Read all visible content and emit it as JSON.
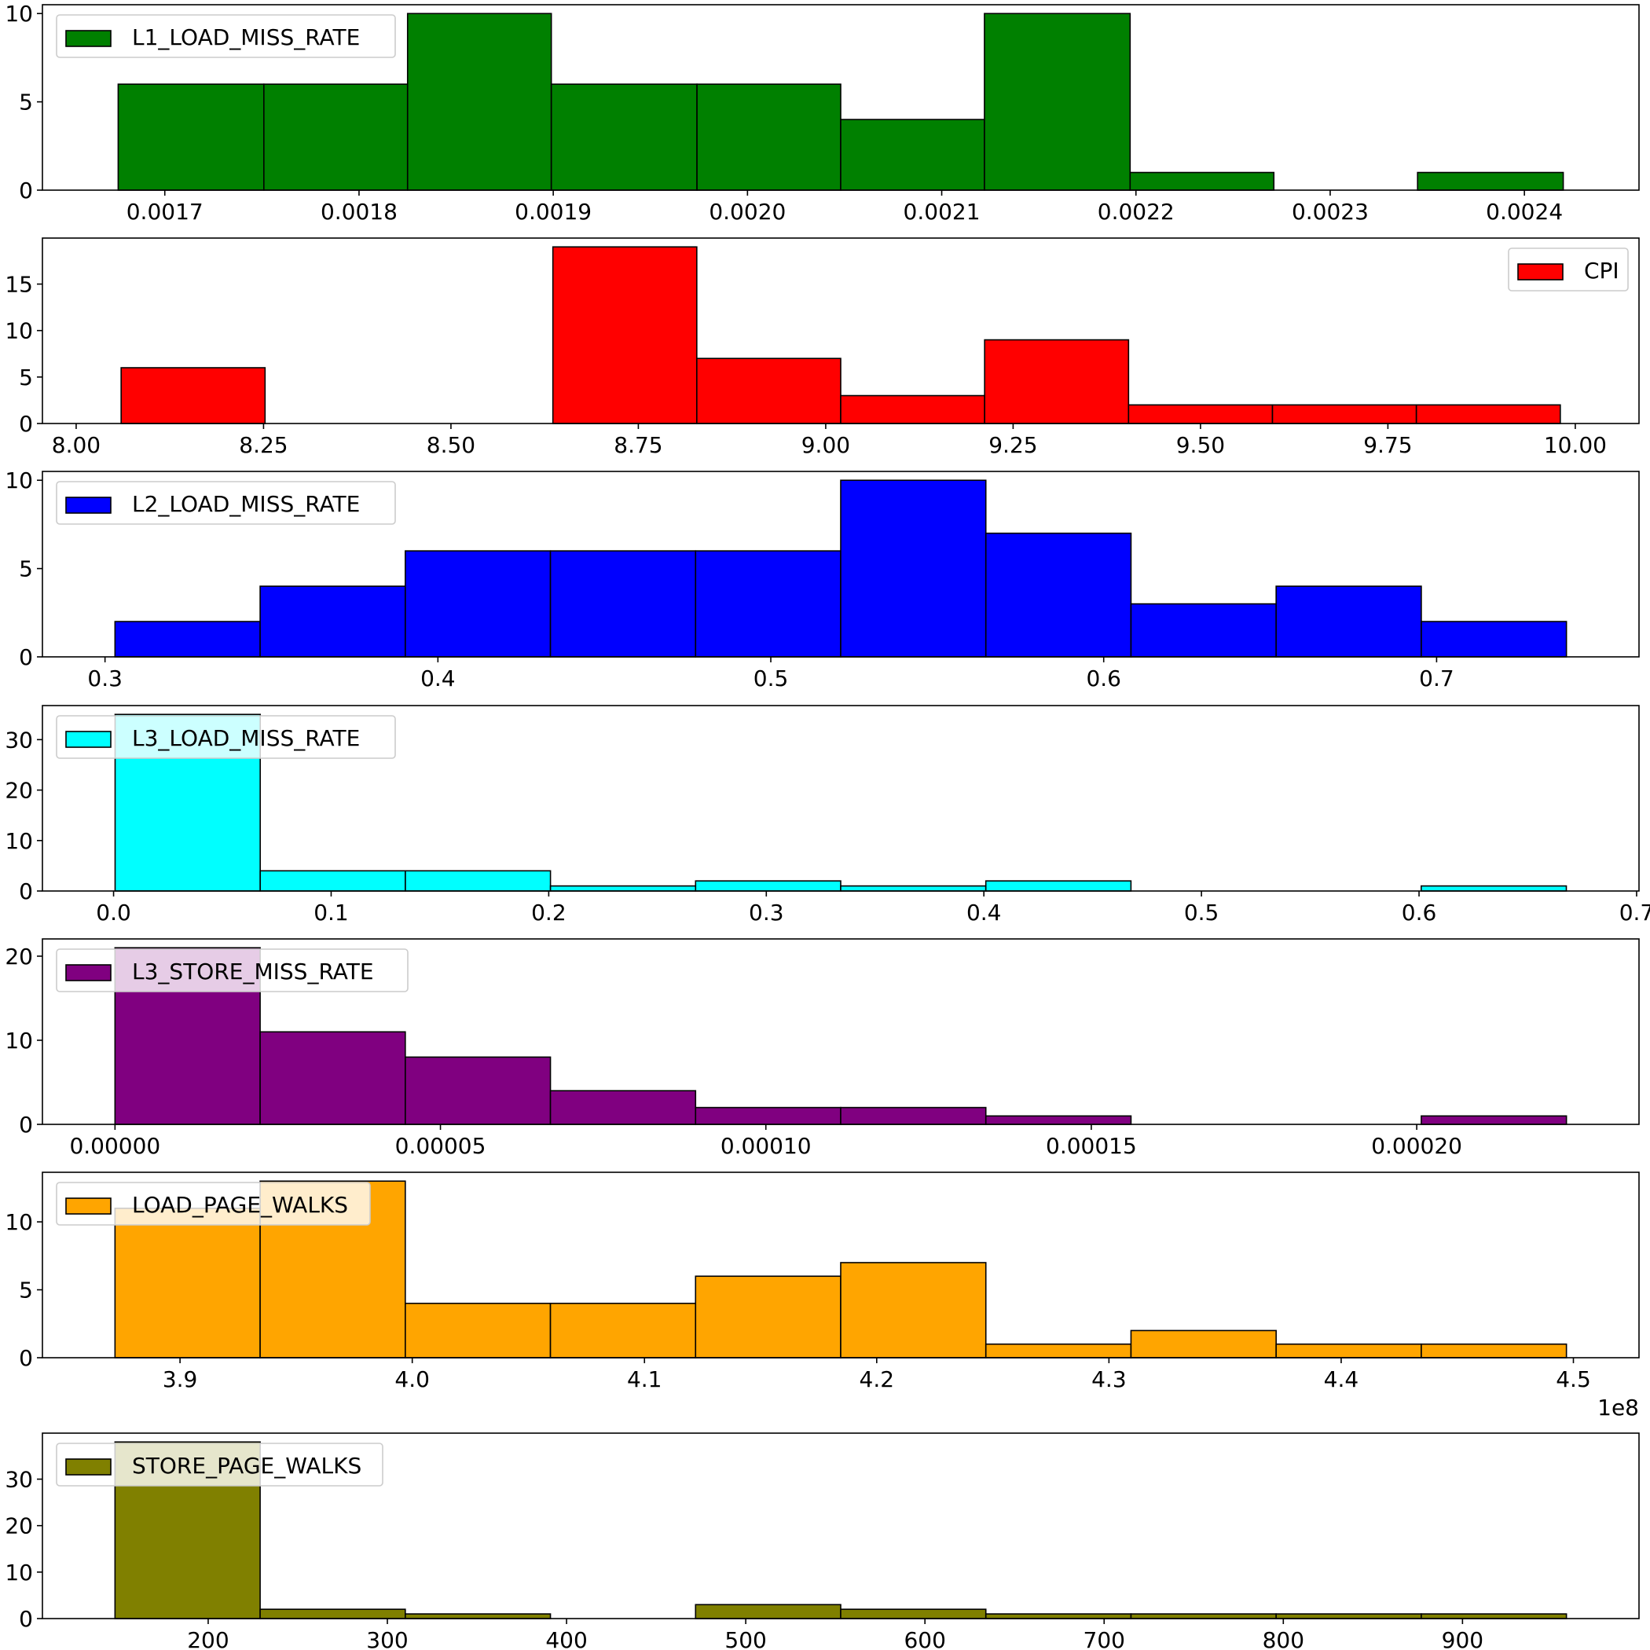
{
  "chart_data": [
    {
      "type": "bar",
      "subtype": "histogram",
      "legend_label": "L1_LOAD_MISS_RATE",
      "legend_position": "upper left",
      "color": "#008000",
      "bin_edges": [
        0.001676,
        0.001751,
        0.001825,
        0.001899,
        0.001974,
        0.002048,
        0.002122,
        0.002197,
        0.002271,
        0.002345,
        0.00242
      ],
      "counts": [
        6,
        6,
        10,
        6,
        6,
        4,
        10,
        1,
        0,
        1
      ],
      "xlim": [
        0.001637,
        0.002459
      ],
      "ylim": [
        0,
        10.5
      ],
      "xticks": [
        0.0017,
        0.0018,
        0.0019,
        0.002,
        0.0021,
        0.0022,
        0.0023,
        0.0024
      ],
      "xtick_labels": [
        "0.0017",
        "0.0018",
        "0.0019",
        "0.0020",
        "0.0021",
        "0.0022",
        "0.0023",
        "0.0024"
      ],
      "yticks": [
        0,
        5,
        10
      ],
      "ytick_labels": [
        "0",
        "5",
        "10"
      ],
      "offset_text": ""
    },
    {
      "type": "bar",
      "subtype": "histogram",
      "legend_label": "CPI",
      "legend_position": "upper right",
      "color": "#ff0000",
      "bin_edges": [
        8.06,
        8.252,
        8.444,
        8.636,
        8.828,
        9.02,
        9.212,
        9.404,
        9.596,
        9.788,
        9.98
      ],
      "counts": [
        6,
        0,
        0,
        19,
        7,
        3,
        9,
        2,
        2,
        2
      ],
      "xlim": [
        7.955,
        10.085
      ],
      "ylim": [
        0,
        19.95
      ],
      "xticks": [
        8.0,
        8.25,
        8.5,
        8.75,
        9.0,
        9.25,
        9.5,
        9.75,
        10.0
      ],
      "xtick_labels": [
        "8.00",
        "8.25",
        "8.50",
        "8.75",
        "9.00",
        "9.25",
        "9.50",
        "9.75",
        "10.00"
      ],
      "yticks": [
        0,
        5,
        10,
        15
      ],
      "ytick_labels": [
        "0",
        "5",
        "10",
        "15"
      ],
      "offset_text": ""
    },
    {
      "type": "bar",
      "subtype": "histogram",
      "legend_label": "L2_LOAD_MISS_RATE",
      "legend_position": "upper left",
      "color": "#0000ff",
      "bin_edges": [
        0.303,
        0.3466,
        0.3902,
        0.4338,
        0.4774,
        0.521,
        0.5646,
        0.6082,
        0.6518,
        0.6954,
        0.739
      ],
      "counts": [
        2,
        4,
        6,
        6,
        6,
        10,
        7,
        3,
        4,
        2
      ],
      "xlim": [
        0.2812,
        0.7608
      ],
      "ylim": [
        0,
        10.5
      ],
      "xticks": [
        0.3,
        0.4,
        0.5,
        0.6,
        0.7
      ],
      "xtick_labels": [
        "0.3",
        "0.4",
        "0.5",
        "0.6",
        "0.7"
      ],
      "yticks": [
        0,
        5,
        10
      ],
      "ytick_labels": [
        "0",
        "5",
        "10"
      ],
      "offset_text": ""
    },
    {
      "type": "bar",
      "subtype": "histogram",
      "legend_label": "L3_LOAD_MISS_RATE",
      "legend_position": "upper left",
      "color": "#00ffff",
      "bin_edges": [
        0.0007,
        0.0674,
        0.1341,
        0.2008,
        0.2675,
        0.3342,
        0.4009,
        0.4676,
        0.5343,
        0.601,
        0.6677
      ],
      "counts": [
        35,
        4,
        4,
        1,
        2,
        1,
        2,
        0,
        0,
        1
      ],
      "xlim": [
        -0.0327,
        0.7011
      ],
      "ylim": [
        0,
        36.75
      ],
      "xticks": [
        0.0,
        0.1,
        0.2,
        0.3,
        0.4,
        0.5,
        0.6,
        0.7
      ],
      "xtick_labels": [
        "0.0",
        "0.1",
        "0.2",
        "0.3",
        "0.4",
        "0.5",
        "0.6",
        "0.7"
      ],
      "yticks": [
        0,
        10,
        20,
        30
      ],
      "ytick_labels": [
        "0",
        "10",
        "20",
        "30"
      ],
      "offset_text": ""
    },
    {
      "type": "bar",
      "subtype": "histogram",
      "legend_label": "L3_STORE_MISS_RATE",
      "legend_position": "upper left",
      "color": "#800080",
      "bin_edges": [
        0.0,
        2.23e-05,
        4.46e-05,
        6.69e-05,
        8.92e-05,
        0.0001115,
        0.0001338,
        0.0001561,
        0.0001784,
        0.0002007,
        0.000223
      ],
      "counts": [
        21,
        11,
        8,
        4,
        2,
        2,
        1,
        0,
        0,
        1
      ],
      "xlim": [
        -1.115e-05,
        0.00023415
      ],
      "ylim": [
        0,
        22.05
      ],
      "xticks": [
        0.0,
        5e-05,
        0.0001,
        0.00015,
        0.0002
      ],
      "xtick_labels": [
        "0.00000",
        "0.00005",
        "0.00010",
        "0.00015",
        "0.00020"
      ],
      "yticks": [
        0,
        10,
        20
      ],
      "ytick_labels": [
        "0",
        "10",
        "20"
      ],
      "offset_text": ""
    },
    {
      "type": "bar",
      "subtype": "histogram",
      "legend_label": "LOAD_PAGE_WALKS",
      "legend_position": "upper left",
      "color": "#ffa500",
      "bin_edges": [
        387200000,
        393450000,
        399700000,
        405950000,
        412200000,
        418450000,
        424700000,
        430950000,
        437200000,
        443450000,
        449700000
      ],
      "counts": [
        11,
        13,
        4,
        4,
        6,
        7,
        1,
        2,
        1,
        1
      ],
      "xlim": [
        384075000,
        452825000
      ],
      "ylim": [
        0,
        13.65
      ],
      "xticks": [
        390000000,
        400000000,
        410000000,
        420000000,
        430000000,
        440000000,
        450000000
      ],
      "xtick_labels": [
        "3.9",
        "4.0",
        "4.1",
        "4.2",
        "4.3",
        "4.4",
        "4.5"
      ],
      "yticks": [
        0,
        5,
        10
      ],
      "ytick_labels": [
        "0",
        "5",
        "10"
      ],
      "offset_text": "1e8"
    },
    {
      "type": "bar",
      "subtype": "histogram",
      "legend_label": "STORE_PAGE_WALKS",
      "legend_position": "upper left",
      "color": "#808000",
      "bin_edges": [
        148,
        229,
        310,
        391,
        472,
        553,
        634,
        715,
        796,
        877,
        958
      ],
      "counts": [
        38,
        2,
        1,
        0,
        3,
        2,
        1,
        1,
        1,
        1
      ],
      "xlim": [
        107.5,
        998.5
      ],
      "ylim": [
        0,
        39.9
      ],
      "xticks": [
        200,
        300,
        400,
        500,
        600,
        700,
        800,
        900
      ],
      "xtick_labels": [
        "200",
        "300",
        "400",
        "500",
        "600",
        "700",
        "800",
        "900"
      ],
      "yticks": [
        0,
        10,
        20,
        30
      ],
      "ytick_labels": [
        "0",
        "10",
        "20",
        "30"
      ],
      "offset_text": ""
    }
  ]
}
